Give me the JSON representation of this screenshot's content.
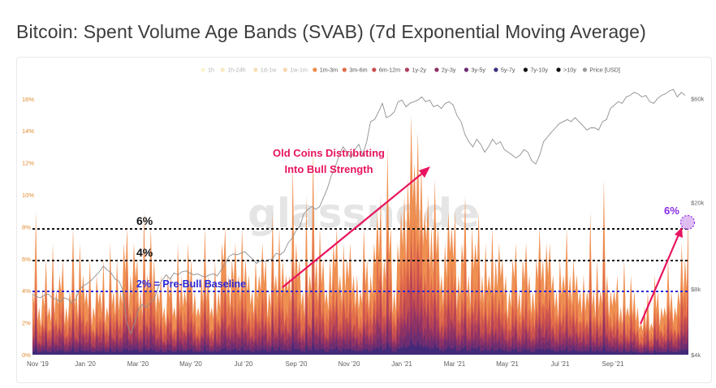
{
  "title": "Bitcoin: Spent Volume Age Bands (SVAB) (7d Exponential Moving Average)",
  "watermark": "glassnode",
  "chart_data": {
    "type": "area",
    "stacked": true,
    "legend_position": "top-right",
    "grid": false,
    "legend": [
      {
        "name": "1h",
        "color": "#f7e9a5",
        "faded": true
      },
      {
        "name": "1h-24h",
        "color": "#f4d98a",
        "faded": true
      },
      {
        "name": "1d-1w",
        "color": "#f2c27a",
        "faded": true
      },
      {
        "name": "1w-1m",
        "color": "#efb473",
        "faded": true
      },
      {
        "name": "1m-3m",
        "color": "#ee8a4a",
        "faded": false
      },
      {
        "name": "3m-6m",
        "color": "#e06a49",
        "faded": false
      },
      {
        "name": "6m-12m",
        "color": "#c9504f",
        "faded": false
      },
      {
        "name": "1y-2y",
        "color": "#ad3e5c",
        "faded": false
      },
      {
        "name": "2y-3y",
        "color": "#8b3166",
        "faded": false
      },
      {
        "name": "3y-5y",
        "color": "#6a2c72",
        "faded": false
      },
      {
        "name": "5y-7y",
        "color": "#3d2a7a",
        "faded": false
      },
      {
        "name": "7y-10y",
        "color": "#111111",
        "faded": false
      },
      {
        "name": ">10y",
        "color": "#111111",
        "faded": false
      },
      {
        "name": "Price [USD]",
        "color": "#9a9a9a",
        "faded": false
      }
    ],
    "x_ticks": [
      "Nov '19",
      "Jan '20",
      "Mar '20",
      "May '20",
      "Jul '20",
      "Sep '20",
      "Nov '20",
      "Jan '21",
      "Mar '21",
      "May '21",
      "Jul '21",
      "Sep '21"
    ],
    "y_left": {
      "ticks": [
        "0%",
        "2%",
        "4%",
        "6%",
        "8%",
        "10%",
        "12%",
        "14%",
        "16%"
      ],
      "range": [
        0,
        16.5
      ]
    },
    "y_right": {
      "ticks": [
        "$4k",
        "$8k",
        "$20k",
        "$60k"
      ],
      "scale": "log",
      "range": [
        4000,
        65000
      ]
    },
    "baselines": [
      {
        "value": 8,
        "label": "6%",
        "color": "#111111"
      },
      {
        "value": 6,
        "label": "4%",
        "color": "#111111"
      },
      {
        "value": 4,
        "label": "2% = Pre-Bull Baseline",
        "color": "#2a27d6"
      }
    ],
    "spent_volume_pct": [
      4,
      9,
      3,
      4,
      6,
      3,
      7,
      4,
      5,
      6,
      3,
      4,
      8,
      4,
      7,
      5,
      4,
      6,
      3,
      5,
      4,
      6,
      3,
      7,
      4,
      6,
      4,
      7,
      8,
      5,
      7,
      6,
      4,
      9,
      5,
      8,
      6,
      4,
      5,
      3,
      5,
      5,
      3,
      7,
      5,
      4,
      7,
      6,
      4,
      3,
      5,
      8,
      5,
      3,
      6,
      4,
      7,
      8,
      5,
      6,
      7,
      5,
      8,
      6,
      5,
      4,
      6,
      5,
      7,
      6,
      4,
      9,
      5,
      8,
      6,
      5,
      5,
      12,
      7,
      6,
      4,
      10,
      5,
      13,
      6,
      8,
      6,
      4,
      6,
      7,
      8,
      5,
      7,
      6,
      7,
      5,
      5,
      4,
      8,
      6,
      5,
      7,
      9,
      10,
      6,
      13,
      8,
      4,
      7,
      9,
      10,
      11,
      15,
      12,
      14,
      12,
      9,
      10,
      8,
      11,
      8,
      5,
      7,
      9,
      8,
      9,
      5,
      7,
      10,
      5,
      8,
      7,
      9,
      5,
      7,
      5,
      8,
      6,
      7,
      6,
      5,
      4,
      6,
      7,
      4,
      6,
      7,
      5,
      4,
      6,
      8,
      6,
      7,
      7,
      5,
      4,
      6,
      5,
      8,
      5,
      6,
      5,
      4,
      5,
      4,
      9,
      4,
      6,
      4,
      11,
      5,
      4,
      4,
      5,
      3,
      6,
      3,
      5,
      4,
      3,
      2,
      3,
      4,
      2,
      5,
      4,
      3,
      3,
      6,
      4,
      3,
      4,
      7,
      6,
      9
    ],
    "price_usd": [
      7600,
      7400,
      7300,
      7500,
      7600,
      7300,
      7200,
      7000,
      7300,
      7200,
      6900,
      7200,
      8000,
      8300,
      8500,
      8800,
      9200,
      9600,
      10200,
      9800,
      9500,
      8900,
      8700,
      7900,
      5600,
      5000,
      5600,
      6500,
      6800,
      6600,
      7000,
      7200,
      8200,
      8800,
      9300,
      8900,
      9500,
      9300,
      9600,
      9700,
      9500,
      9300,
      9400,
      9200,
      9100,
      9300,
      9400,
      9200,
      9800,
      10500,
      11300,
      11600,
      11500,
      11700,
      11900,
      11400,
      11000,
      10500,
      10800,
      10700,
      10900,
      11000,
      11700,
      11500,
      11900,
      13000,
      13700,
      14800,
      15500,
      17700,
      18500,
      19200,
      18600,
      19100,
      21000,
      23200,
      26500,
      29000,
      33000,
      36000,
      34000,
      32000,
      35000,
      37000,
      33000,
      38000,
      47000,
      48000,
      52000,
      57000,
      49000,
      50000,
      52000,
      58000,
      59000,
      55000,
      57000,
      58000,
      59000,
      61000,
      58000,
      59000,
      55000,
      56000,
      54000,
      57000,
      58000,
      56000,
      50000,
      47000,
      41000,
      38000,
      36000,
      39000,
      37000,
      34000,
      36000,
      39000,
      37000,
      38000,
      35000,
      34000,
      33000,
      32000,
      33000,
      35000,
      34000,
      31000,
      30000,
      33000,
      38000,
      40000,
      42000,
      44000,
      46000,
      47000,
      48000,
      47000,
      49000,
      47000,
      45000,
      43000,
      44000,
      44000,
      43000,
      47000,
      48000,
      54000,
      56000,
      58000,
      57000,
      61000,
      62000,
      64000,
      63000,
      61000,
      62000,
      58000,
      57000,
      60000,
      62000,
      63000,
      65000,
      66000,
      61000,
      64000,
      62000
    ]
  },
  "axis_labels": {
    "left": [
      "0%",
      "2%",
      "4%",
      "6%",
      "8%",
      "10%",
      "12%",
      "14%",
      "16%"
    ],
    "right": [
      "$4k",
      "$8k",
      "$20k",
      "$60k"
    ],
    "x": [
      "Nov '19",
      "Jan '20",
      "Mar '20",
      "May '20",
      "Jul '20",
      "Sep '20",
      "Nov '20",
      "Jan '21",
      "Mar '21",
      "May '21",
      "Jul '21",
      "Sep '21"
    ]
  },
  "annotations": {
    "old_coins_line1": "Old Coins Distributing",
    "old_coins_line2": "Into Bull Strength",
    "label_6pct": "6%",
    "label_4pct": "4%",
    "label_baseline": "2% = Pre-Bull Baseline",
    "label_current": "6%",
    "accent_color": "#e8145f",
    "current_color": "#8a2be2"
  }
}
